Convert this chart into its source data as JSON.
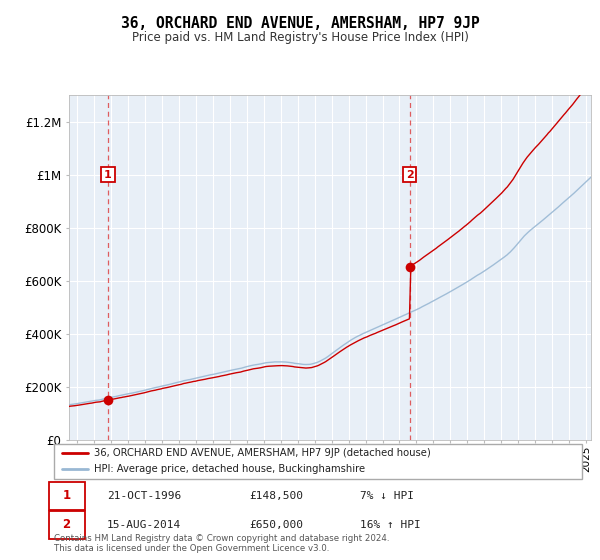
{
  "title": "36, ORCHARD END AVENUE, AMERSHAM, HP7 9JP",
  "subtitle": "Price paid vs. HM Land Registry's House Price Index (HPI)",
  "ylabel_ticks": [
    "£0",
    "£200K",
    "£400K",
    "£600K",
    "£800K",
    "£1M",
    "£1.2M"
  ],
  "ylim": [
    0,
    1300000
  ],
  "xlim_start": 1994.5,
  "xlim_end": 2025.3,
  "purchase1_year": 1996.8,
  "purchase1_price": 148500,
  "purchase2_year": 2014.6,
  "purchase2_price": 650000,
  "hpi_color": "#99b8d4",
  "price_color": "#cc0000",
  "dashed_color": "#dd4444",
  "plot_bg_color": "#e8eff7",
  "legend_label_price": "36, ORCHARD END AVENUE, AMERSHAM, HP7 9JP (detached house)",
  "legend_label_hpi": "HPI: Average price, detached house, Buckinghamshire",
  "annotation1_label": "1",
  "annotation1_date": "21-OCT-1996",
  "annotation1_price": "£148,500",
  "annotation1_hpi": "7% ↓ HPI",
  "annotation2_label": "2",
  "annotation2_date": "15-AUG-2014",
  "annotation2_price": "£650,000",
  "annotation2_hpi": "16% ↑ HPI",
  "footer": "Contains HM Land Registry data © Crown copyright and database right 2024.\nThis data is licensed under the Open Government Licence v3.0."
}
